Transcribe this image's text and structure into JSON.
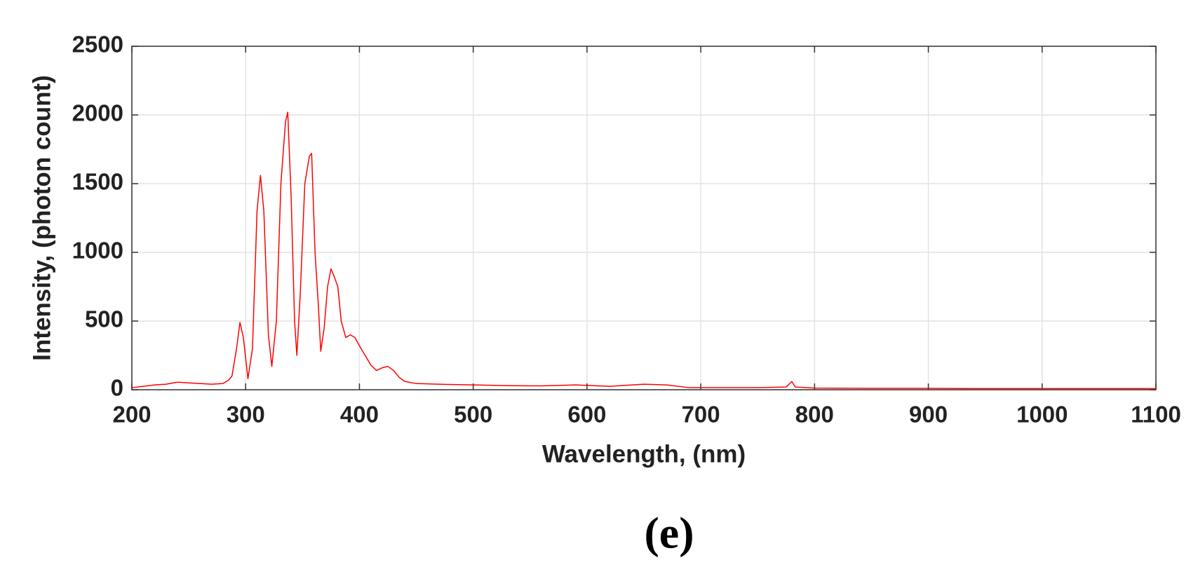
{
  "chart_data": {
    "type": "line",
    "x_label": "Wavelength, (nm)",
    "y_label": "Intensity, (photon count)",
    "caption": "(e)",
    "x": [
      200,
      210,
      220,
      230,
      240,
      250,
      260,
      270,
      280,
      285,
      288,
      292,
      295,
      298,
      302,
      306,
      310,
      313,
      316,
      320,
      323,
      327,
      331,
      335,
      337,
      340,
      343,
      345,
      348,
      352,
      356,
      358,
      361,
      364,
      366,
      369,
      372,
      375,
      378,
      381,
      384,
      388,
      392,
      396,
      400,
      405,
      410,
      415,
      420,
      425,
      430,
      435,
      440,
      450,
      470,
      500,
      530,
      560,
      590,
      620,
      650,
      670,
      690,
      720,
      750,
      775,
      780,
      783,
      800,
      850,
      900,
      950,
      1000,
      1050,
      1100
    ],
    "series": [
      {
        "name": "Intensity",
        "color": "#ff0000",
        "values": [
          15,
          25,
          35,
          40,
          55,
          50,
          45,
          40,
          45,
          70,
          100,
          300,
          490,
          380,
          80,
          300,
          1300,
          1560,
          1300,
          400,
          170,
          500,
          1500,
          1950,
          2020,
          1400,
          500,
          250,
          700,
          1500,
          1700,
          1720,
          1000,
          600,
          280,
          450,
          750,
          880,
          820,
          750,
          500,
          380,
          400,
          380,
          320,
          250,
          180,
          140,
          160,
          170,
          140,
          90,
          60,
          45,
          40,
          35,
          30,
          28,
          35,
          25,
          40,
          35,
          15,
          15,
          15,
          20,
          60,
          20,
          12,
          10,
          10,
          8,
          8,
          8,
          8
        ]
      }
    ],
    "xlim": [
      200,
      1100
    ],
    "xticks": [
      200,
      300,
      400,
      500,
      600,
      700,
      800,
      900,
      1000,
      1100
    ],
    "ylim": [
      0,
      2500
    ],
    "yticks": [
      0,
      500,
      1000,
      1500,
      2000,
      2500
    ],
    "grid": true
  }
}
